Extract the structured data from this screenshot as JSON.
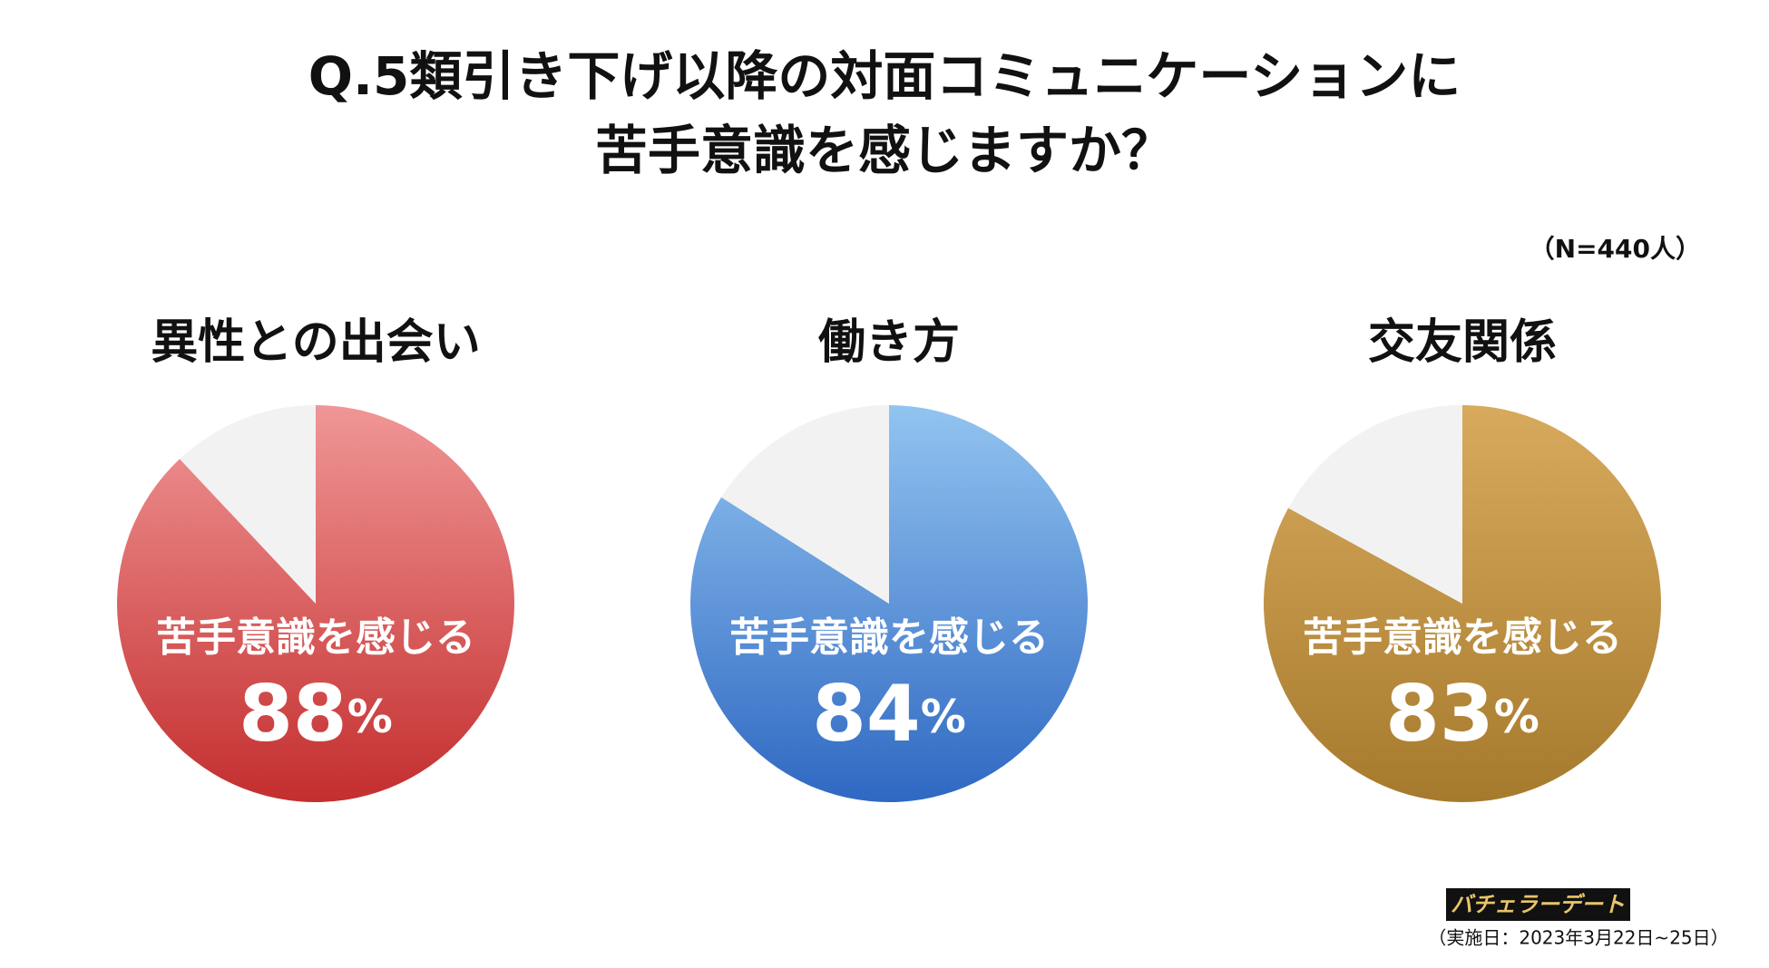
{
  "header": {
    "title_lines": [
      "Q.5類引き下げ以降の対面コミュニケーションに",
      "苦手意識を感じますか？"
    ],
    "sample": "（N=440人）"
  },
  "chart_data": [
    {
      "type": "pie",
      "title": "異性との出会い",
      "categories": [
        "苦手意識を感じる",
        null
      ],
      "values": [
        88,
        12
      ],
      "unit": "%",
      "colors": [
        [
          "#f09696",
          "#c42e2e"
        ],
        "#f2f2f2"
      ]
    },
    {
      "type": "pie",
      "title": "働き方",
      "categories": [
        "苦手意識を感じる",
        null
      ],
      "values": [
        84,
        16
      ],
      "unit": "%",
      "colors": [
        [
          "#92c4f0",
          "#2f68c2"
        ],
        "#f2f2f2"
      ]
    },
    {
      "type": "pie",
      "title": "交友関係",
      "categories": [
        "苦手意識を感じる",
        null
      ],
      "values": [
        83,
        17
      ],
      "unit": "%",
      "colors": [
        [
          "#d8aa5e",
          "#a67a2c"
        ],
        "#f2f2f2"
      ]
    }
  ],
  "footer": {
    "logo": "バチェラーデート",
    "date": "（実施日：2023年3月22日~25日）"
  }
}
